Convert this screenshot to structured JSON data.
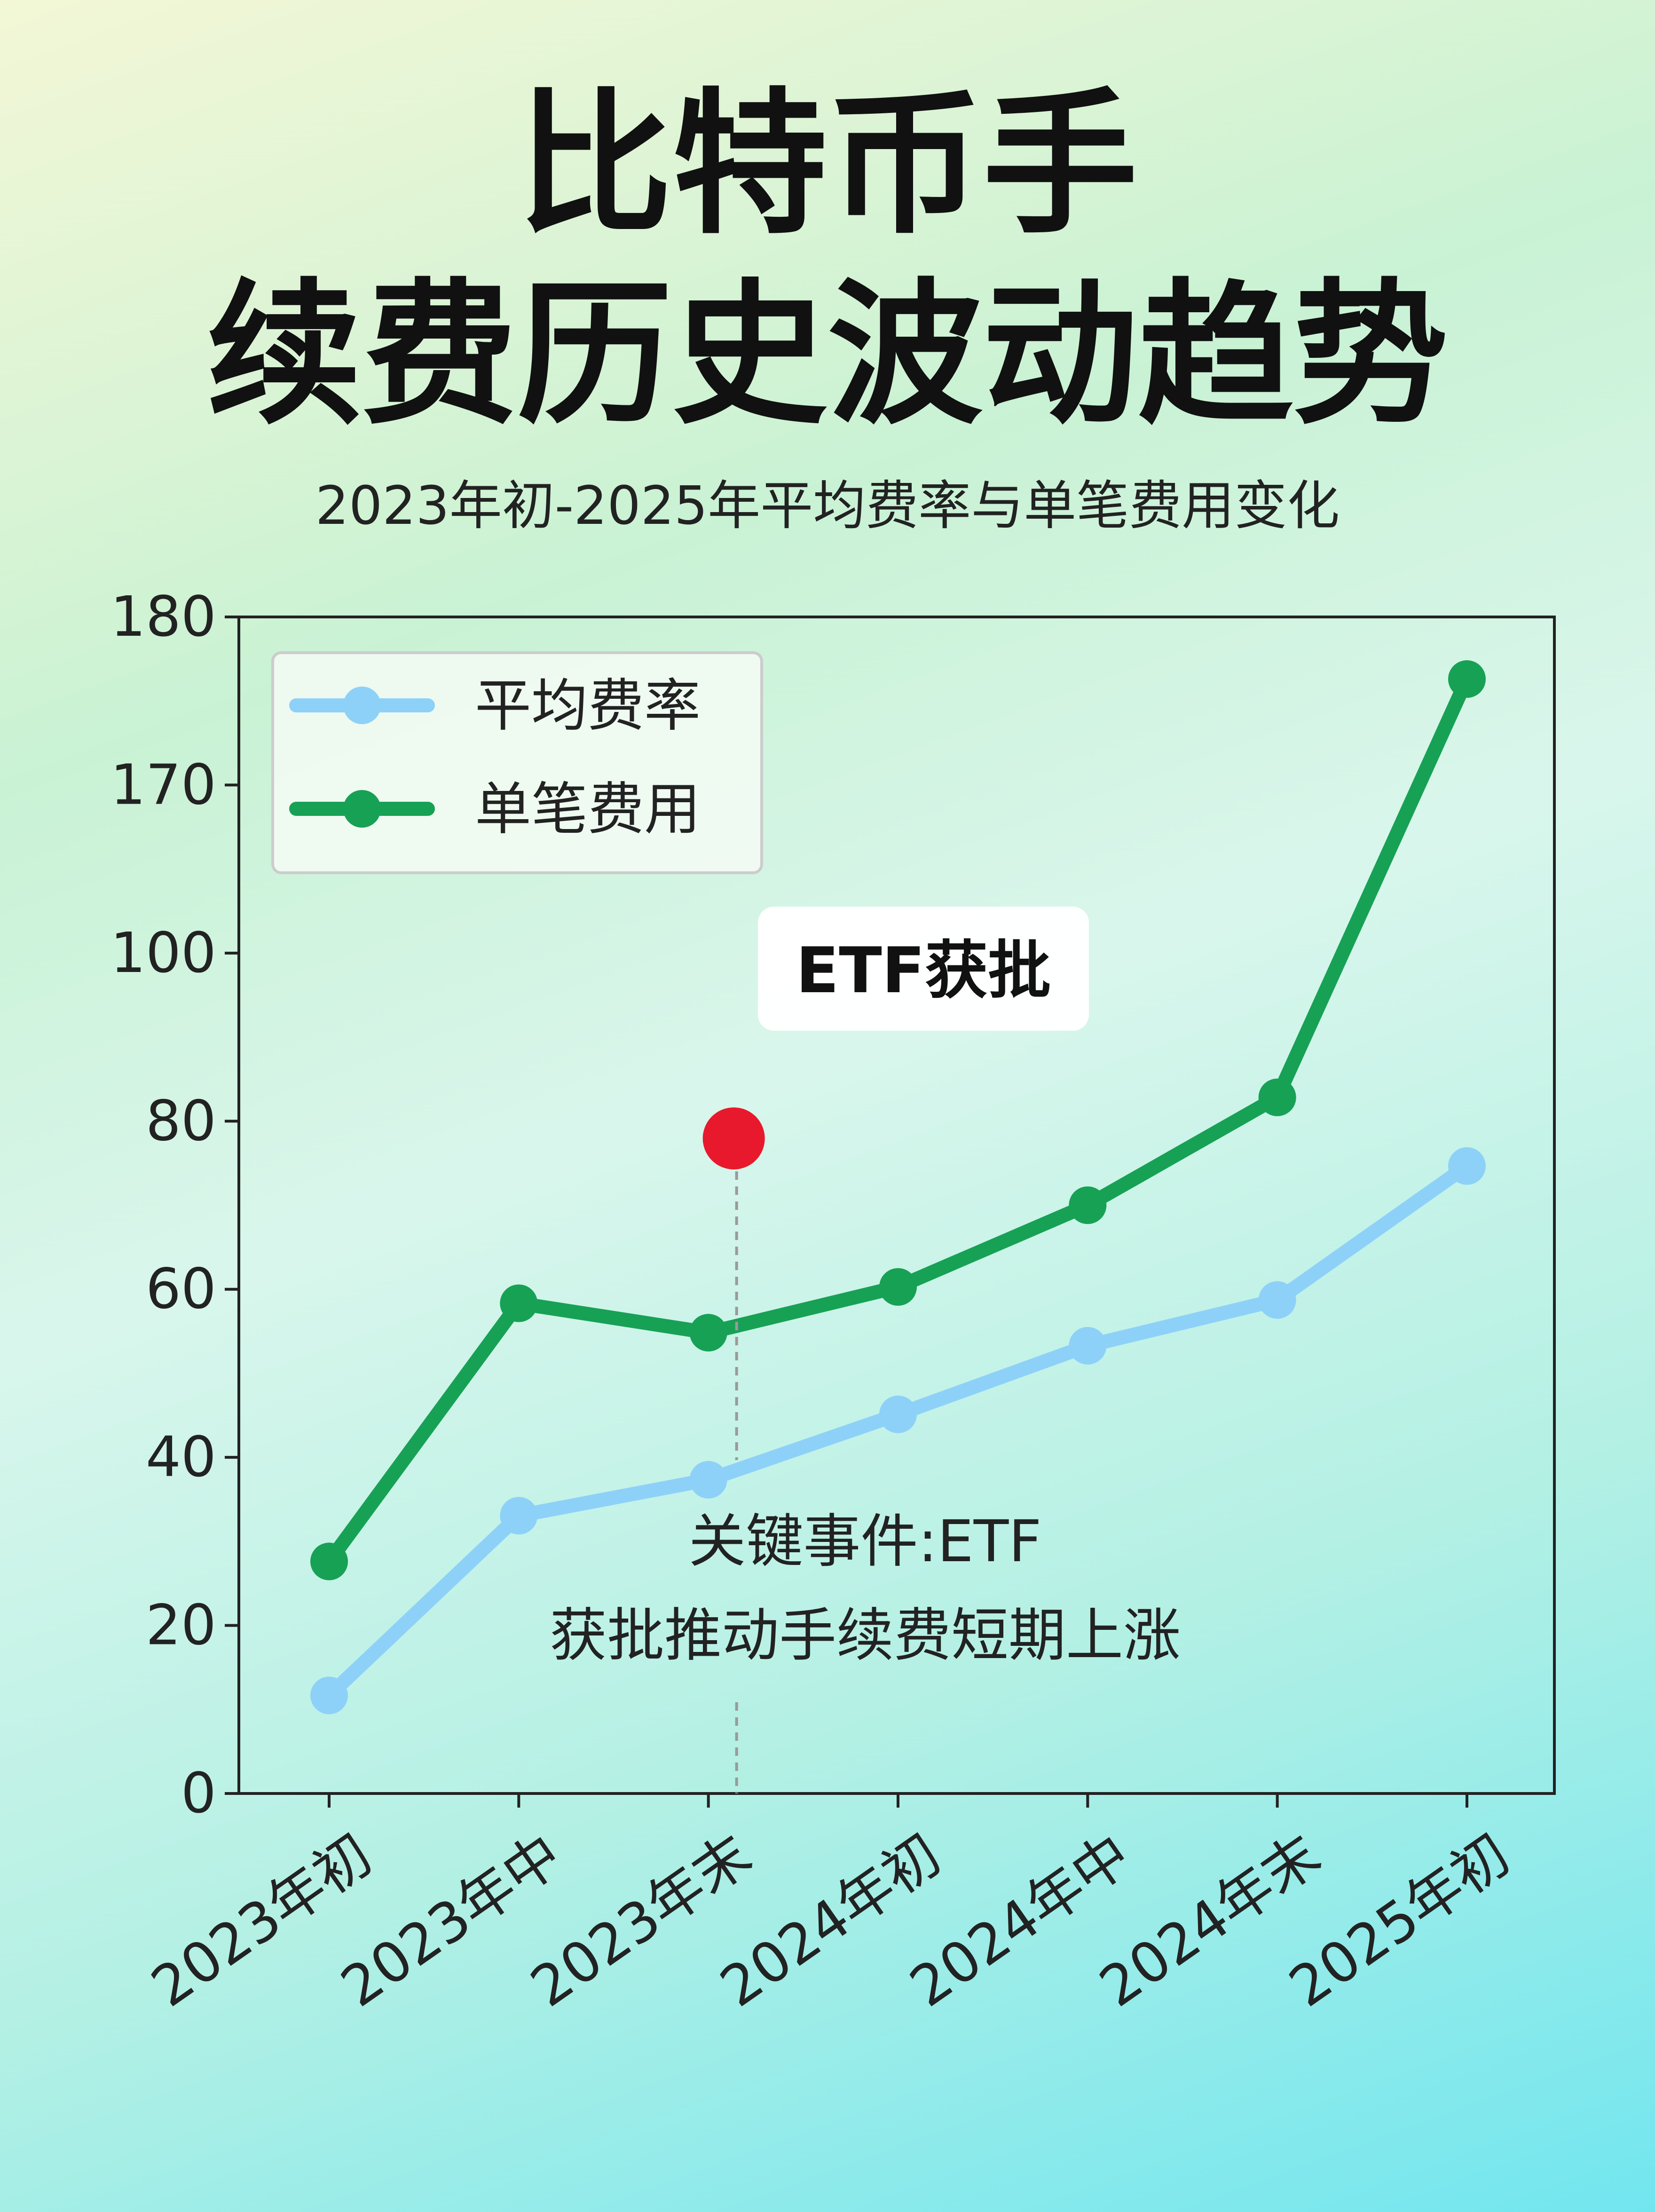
{
  "title_line1": "比特币手",
  "title_line2": "续费历史波动趋势",
  "subtitle": "2023年初-2025年平均费率与单笔费用变化",
  "chart_data": {
    "type": "line",
    "categories": [
      "2023年初",
      "2023年中",
      "2023年末",
      "2024年初",
      "2024年中",
      "2024年末",
      "2025年初"
    ],
    "series": [
      {
        "name": "平均费率",
        "values": [
          15,
          42.5,
          48,
          58,
          68.5,
          75.5,
          96
        ],
        "color": "#8ed1f8"
      },
      {
        "name": "单笔费用",
        "values": [
          35.5,
          75,
          70.5,
          77.5,
          90,
          106.5,
          170.5
        ],
        "color": "#17a155"
      }
    ],
    "y_ticks": [
      "0",
      "20",
      "40",
      "60",
      "80",
      "100",
      "170",
      "180"
    ],
    "ylim": [
      0,
      180
    ],
    "grid": false,
    "legend_position": "top-left",
    "event_marker": {
      "label": "ETF获批",
      "position_category": "2023年末",
      "y_value": 99.5,
      "color": "#e8192c"
    },
    "annotation": {
      "line1": "关键事件:ETF",
      "line2": "获批推动手续费短期上涨"
    }
  }
}
